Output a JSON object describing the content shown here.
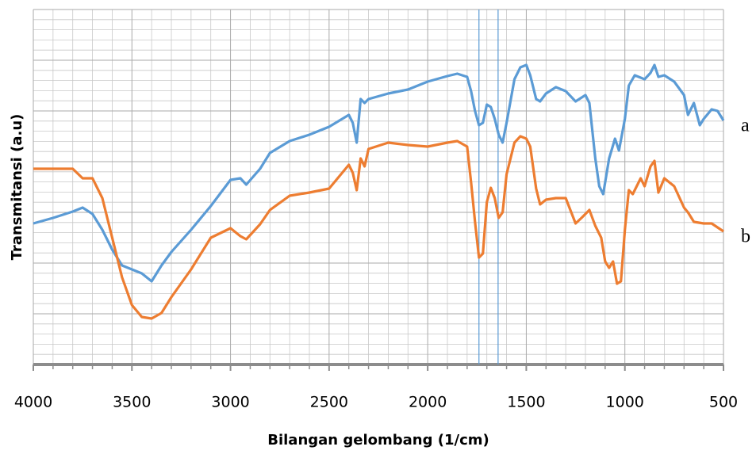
{
  "chart_data": {
    "type": "line",
    "x_label": "Bilangan gelombang (1/cm)",
    "y_label": "Transmitansi (a.u)",
    "xlim": [
      4000,
      500
    ],
    "xticks": [
      4000,
      3500,
      3000,
      2500,
      2000,
      1500,
      1000,
      500
    ],
    "ylim": [
      0,
      448
    ],
    "yticks": [
      0,
      64,
      128,
      192,
      256,
      320,
      384,
      448
    ],
    "show_ytick_labels": false,
    "grid": true,
    "minor_grid_divisions": 5,
    "grid_color": "#c8c8c8",
    "axis_color": "#8c8c8c",
    "annotation_lines": [
      {
        "x": 1740,
        "color": "#5b9bd5"
      },
      {
        "x": 1643,
        "color": "#5b9bd5"
      }
    ],
    "series": [
      {
        "name": "a",
        "color": "#5b9bd5",
        "x": [
          4000,
          3900,
          3800,
          3750,
          3700,
          3650,
          3600,
          3550,
          3500,
          3450,
          3400,
          3350,
          3300,
          3200,
          3100,
          3000,
          2950,
          2920,
          2850,
          2800,
          2700,
          2600,
          2500,
          2400,
          2380,
          2360,
          2340,
          2320,
          2300,
          2200,
          2100,
          2000,
          1900,
          1850,
          1800,
          1780,
          1760,
          1740,
          1720,
          1700,
          1680,
          1660,
          1640,
          1620,
          1600,
          1560,
          1530,
          1500,
          1480,
          1450,
          1430,
          1400,
          1350,
          1300,
          1250,
          1200,
          1180,
          1150,
          1130,
          1110,
          1080,
          1050,
          1030,
          1000,
          980,
          950,
          900,
          870,
          850,
          830,
          800,
          750,
          700,
          680,
          650,
          620,
          600,
          560,
          530,
          500
        ],
        "values": [
          178,
          185,
          193,
          198,
          190,
          170,
          145,
          125,
          120,
          115,
          105,
          125,
          142,
          170,
          200,
          233,
          235,
          227,
          247,
          267,
          282,
          290,
          300,
          315,
          305,
          280,
          335,
          330,
          335,
          342,
          347,
          357,
          364,
          367,
          363,
          345,
          320,
          302,
          305,
          328,
          325,
          310,
          290,
          280,
          305,
          360,
          375,
          378,
          365,
          335,
          332,
          342,
          350,
          345,
          332,
          340,
          330,
          260,
          225,
          215,
          260,
          285,
          270,
          310,
          352,
          365,
          360,
          368,
          378,
          363,
          365,
          357,
          340,
          315,
          330,
          302,
          310,
          322,
          320,
          308
        ]
      },
      {
        "name": "b",
        "color": "#ed7d31",
        "x": [
          4000,
          3850,
          3800,
          3750,
          3700,
          3650,
          3600,
          3550,
          3500,
          3450,
          3400,
          3350,
          3300,
          3200,
          3100,
          3000,
          2950,
          2920,
          2850,
          2800,
          2700,
          2600,
          2500,
          2400,
          2380,
          2360,
          2340,
          2320,
          2300,
          2200,
          2100,
          2000,
          1900,
          1850,
          1800,
          1780,
          1760,
          1740,
          1720,
          1700,
          1680,
          1660,
          1640,
          1620,
          1600,
          1560,
          1530,
          1500,
          1480,
          1450,
          1430,
          1400,
          1350,
          1300,
          1250,
          1220,
          1180,
          1150,
          1120,
          1100,
          1080,
          1060,
          1040,
          1020,
          1000,
          980,
          960,
          920,
          900,
          870,
          850,
          830,
          800,
          750,
          700,
          680,
          650,
          600,
          560,
          500
        ],
        "values": [
          247,
          247,
          247,
          235,
          235,
          210,
          160,
          110,
          75,
          60,
          58,
          65,
          85,
          120,
          160,
          172,
          162,
          158,
          177,
          195,
          213,
          217,
          222,
          252,
          242,
          220,
          260,
          250,
          272,
          280,
          277,
          275,
          280,
          282,
          275,
          230,
          180,
          135,
          140,
          205,
          223,
          210,
          185,
          192,
          240,
          280,
          288,
          285,
          275,
          222,
          202,
          208,
          210,
          210,
          178,
          185,
          195,
          175,
          160,
          130,
          122,
          130,
          102,
          105,
          170,
          220,
          215,
          235,
          225,
          250,
          257,
          217,
          235,
          225,
          198,
          192,
          180,
          178,
          178,
          168
        ]
      }
    ]
  }
}
